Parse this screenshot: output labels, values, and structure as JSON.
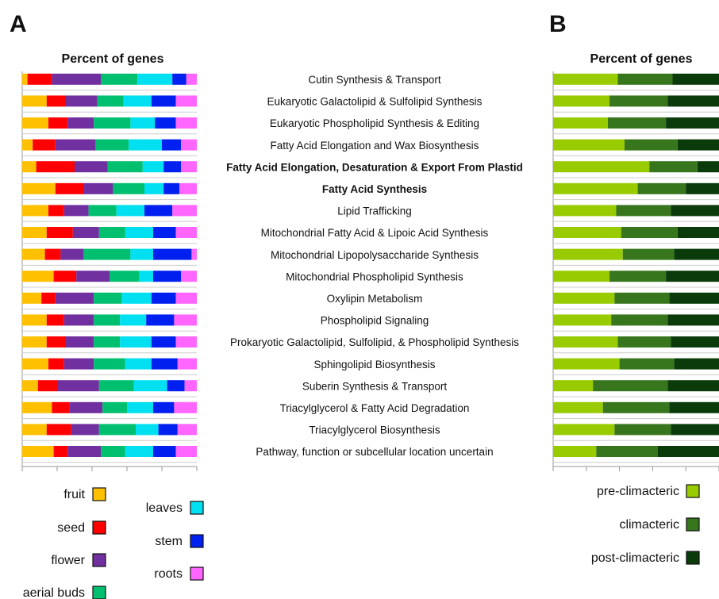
{
  "panels": {
    "a": {
      "letter": "A",
      "title": "Percent of genes"
    },
    "b": {
      "letter": "B",
      "title": "Percent of genes"
    }
  },
  "chart_data": [
    {
      "type": "bar",
      "orientation": "horizontal-stacked",
      "title": "Percent of genes",
      "categories": [
        "Cutin Synthesis & Transport",
        "Eukaryotic Galactolipid & Sulfolipid Synthesis",
        "Eukaryotic Phospholipid Synthesis & Editing",
        "Fatty Acid Elongation and Wax Biosynthesis",
        "Fatty Acid Elongation, Desaturation & Export From Plastid",
        "Fatty Acid Synthesis",
        "Lipid Trafficking",
        "Mitochondrial Fatty Acid & Lipoic Acid Synthesis",
        "Mitochondrial Lipopolysaccharide Synthesis",
        "Mitochondrial Phospholipid Synthesis",
        "Oxylipin Metabolism",
        "Phospholipid Signaling",
        "Prokaryotic Galactolipid, Sulfolipid, & Phospholipid Synthesis",
        "Sphingolipid Biosynthesis",
        "Suberin Synthesis & Transport",
        "Triacylglycerol & Fatty Acid Degradation",
        "Triacylglycerol Biosynthesis",
        "Pathway, function or subcellular location uncertain"
      ],
      "bold_categories": [
        4,
        5
      ],
      "series": [
        {
          "name": "fruit",
          "color": "#FFC000",
          "values": [
            3,
            14,
            15,
            6,
            8,
            19,
            15,
            14,
            13,
            18,
            11,
            14,
            14,
            15,
            9,
            17,
            14,
            18
          ]
        },
        {
          "name": "seed",
          "color": "#FF0000",
          "values": [
            14,
            11,
            11,
            13,
            22,
            16,
            9,
            15,
            9,
            13,
            8,
            10,
            11,
            9,
            11,
            10,
            14,
            8
          ]
        },
        {
          "name": "flower",
          "color": "#7030A0",
          "values": [
            28,
            18,
            15,
            23,
            19,
            17,
            14,
            15,
            13,
            19,
            22,
            17,
            16,
            17,
            24,
            19,
            16,
            19
          ]
        },
        {
          "name": "aerial buds",
          "color": "#00C070",
          "values": [
            21,
            15,
            21,
            19,
            20,
            18,
            16,
            15,
            27,
            17,
            16,
            15,
            15,
            18,
            20,
            14,
            21,
            14
          ]
        },
        {
          "name": "leaves",
          "color": "#00E0F0",
          "values": [
            20,
            16,
            14,
            19,
            12,
            11,
            16,
            16,
            13,
            8,
            17,
            15,
            18,
            15,
            19,
            15,
            13,
            16
          ]
        },
        {
          "name": "stem",
          "color": "#0020F0",
          "values": [
            8,
            14,
            12,
            11,
            10,
            9,
            16,
            13,
            22,
            16,
            14,
            16,
            14,
            15,
            10,
            12,
            11,
            13
          ]
        },
        {
          "name": "roots",
          "color": "#FF66FF",
          "values": [
            6,
            12,
            12,
            9,
            9,
            10,
            14,
            12,
            3,
            9,
            12,
            13,
            12,
            11,
            7,
            13,
            11,
            12
          ]
        }
      ],
      "xlim": [
        0,
        100
      ],
      "legend": "bottom"
    },
    {
      "type": "bar",
      "orientation": "horizontal-stacked",
      "title": "Percent of genes",
      "categories": [
        "Cutin Synthesis & Transport",
        "Eukaryotic Galactolipid & Sulfolipid Synthesis",
        "Eukaryotic Phospholipid Synthesis & Editing",
        "Fatty Acid Elongation and Wax Biosynthesis",
        "Fatty Acid Elongation, Desaturation & Export From Plastid",
        "Fatty Acid Synthesis",
        "Lipid Trafficking",
        "Mitochondrial Fatty Acid & Lipoic Acid Synthesis",
        "Mitochondrial Lipopolysaccharide Synthesis",
        "Mitochondrial Phospholipid Synthesis",
        "Oxylipin Metabolism",
        "Phospholipid Signaling",
        "Prokaryotic Galactolipid, Sulfolipid, & Phospholipid Synthesis",
        "Sphingolipid Biosynthesis",
        "Suberin Synthesis & Transport",
        "Triacylglycerol & Fatty Acid Degradation",
        "Triacylglycerol Biosynthesis",
        "Pathway, function or subcellular location uncertain"
      ],
      "series": [
        {
          "name": "pre-climacteric",
          "color": "#99CC00",
          "values": [
            39,
            34,
            33,
            43,
            58,
            51,
            38,
            41,
            42,
            34,
            37,
            35,
            39,
            40,
            24,
            30,
            37,
            26
          ]
        },
        {
          "name": "climacteric",
          "color": "#38761D",
          "values": [
            33,
            35,
            35,
            32,
            29,
            29,
            33,
            34,
            31,
            34,
            33,
            34,
            32,
            33,
            45,
            40,
            34,
            37
          ]
        },
        {
          "name": "post-climacteric",
          "color": "#0B3B0B",
          "values": [
            28,
            31,
            32,
            25,
            13,
            20,
            29,
            25,
            27,
            32,
            30,
            31,
            29,
            27,
            31,
            30,
            29,
            37
          ]
        }
      ],
      "xlim": [
        0,
        100
      ],
      "legend": "bottom"
    }
  ]
}
